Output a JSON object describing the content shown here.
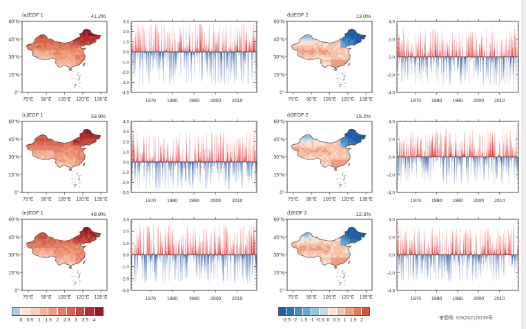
{
  "chart_data": [
    {
      "id": "a-map",
      "type": "heatmap",
      "panel": "(a)EOF 1",
      "variance": "41.2%",
      "palette": "reds",
      "xticks": [
        "75°E",
        "90°E",
        "105°E",
        "120°E",
        "135°E"
      ],
      "yticks": [
        "0°",
        "15°N",
        "30°N",
        "45°N",
        "60°N"
      ],
      "pattern": "north-high"
    },
    {
      "id": "a-pc",
      "type": "bar",
      "ylim": [
        -4,
        3
      ],
      "yticks": [
        "3.0",
        "2.0",
        "1.0",
        "0.0",
        "-1.0",
        "-2.0",
        "-3.0",
        "-4.0"
      ],
      "xticks": [
        "1970",
        "1980",
        "1990",
        "2000",
        "2010"
      ],
      "xlim": [
        1961,
        2019
      ],
      "seed": 11,
      "pos_max": 2.9,
      "neg_min": -3.3
    },
    {
      "id": "b-map",
      "type": "heatmap",
      "panel": "(b)EOF 2",
      "variance": "13.0%",
      "palette": "diverging",
      "xticks": [
        "75°E",
        "90°E",
        "105°E",
        "120°E",
        "135°E"
      ],
      "yticks": [
        "0°",
        "15°N",
        "30°N",
        "45°N",
        "60°N"
      ],
      "pattern": "northeast-negative"
    },
    {
      "id": "b-pc",
      "type": "bar",
      "ylim": [
        -4,
        4
      ],
      "yticks": [
        "4.0",
        "2.0",
        "0.0",
        "-2.0",
        "-4.0"
      ],
      "xticks": [
        "1970",
        "1980",
        "1990",
        "2000",
        "2010"
      ],
      "xlim": [
        1961,
        2019
      ],
      "seed": 23,
      "pos_max": 3.3,
      "neg_min": -3.3
    },
    {
      "id": "c-map",
      "type": "heatmap",
      "panel": "(c)EOF 1",
      "variance": "33.9%",
      "palette": "reds",
      "xticks": [
        "75°E",
        "90°E",
        "105°E",
        "120°E",
        "135°E"
      ],
      "yticks": [
        "0°",
        "15°N",
        "30°N",
        "45°N",
        "60°N"
      ],
      "pattern": "north-high"
    },
    {
      "id": "c-pc",
      "type": "bar",
      "ylim": [
        -3,
        4
      ],
      "yticks": [
        "4.0",
        "3.0",
        "2.0",
        "1.0",
        "0.0",
        "-1.0",
        "-2.0",
        "-3.0"
      ],
      "xticks": [
        "1970",
        "1980",
        "1990",
        "2000",
        "2010"
      ],
      "xlim": [
        1961,
        2019
      ],
      "seed": 37,
      "pos_max": 3.1,
      "neg_min": -2.8
    },
    {
      "id": "d-map",
      "type": "heatmap",
      "panel": "(d)EOF 2",
      "variance": "15.2%",
      "palette": "diverging",
      "xticks": [
        "75°E",
        "90°E",
        "105°E",
        "120°E",
        "135°E"
      ],
      "yticks": [
        "0°",
        "15°N",
        "30°N",
        "45°N",
        "60°N"
      ],
      "pattern": "northeast-negative"
    },
    {
      "id": "d-pc",
      "type": "bar",
      "ylim": [
        -4,
        4
      ],
      "yticks": [
        "4.0",
        "2.0",
        "0.0",
        "-2.0",
        "-4.0"
      ],
      "xticks": [
        "1970",
        "1980",
        "1990",
        "2000",
        "2010"
      ],
      "xlim": [
        1961,
        2019
      ],
      "seed": 41,
      "pos_max": 3.2,
      "neg_min": -3.2
    },
    {
      "id": "e-map",
      "type": "heatmap",
      "panel": "(e)EOF 1",
      "variance": "48.9%",
      "palette": "reds",
      "xticks": [
        "75°E",
        "90°E",
        "105°E",
        "120°E",
        "135°E"
      ],
      "yticks": [
        "0°",
        "15°N",
        "30°N",
        "45°N",
        "60°N"
      ],
      "pattern": "north-high"
    },
    {
      "id": "e-pc",
      "type": "bar",
      "ylim": [
        -3,
        3
      ],
      "yticks": [
        "3.0",
        "2.0",
        "1.0",
        "0.0",
        "-1.0",
        "-2.0",
        "-3.0"
      ],
      "xticks": [
        "1970",
        "1980",
        "1990",
        "2000",
        "2010"
      ],
      "xlim": [
        1961,
        2019
      ],
      "seed": 53,
      "pos_max": 2.6,
      "neg_min": -2.5
    },
    {
      "id": "f-map",
      "type": "heatmap",
      "panel": "(f)EOF 2",
      "variance": "12.3%",
      "palette": "diverging",
      "xticks": [
        "75°E",
        "90°E",
        "105°E",
        "120°E",
        "135°E"
      ],
      "yticks": [
        "0°",
        "15°N",
        "30°N",
        "45°N",
        "60°N"
      ],
      "pattern": "northeast-negative"
    },
    {
      "id": "f-pc",
      "type": "bar",
      "ylim": [
        -4,
        4
      ],
      "yticks": [
        "4.0",
        "2.0",
        "0.0",
        "-2.0",
        "-4.0"
      ],
      "xticks": [
        "1970",
        "1980",
        "1990",
        "2000",
        "2010"
      ],
      "xlim": [
        1961,
        2019
      ],
      "seed": 67,
      "pos_max": 3.1,
      "neg_min": -3.1
    }
  ],
  "colorbars": {
    "reds": {
      "colors": [
        "#a9cce3",
        "#fbe3d6",
        "#f8cdb9",
        "#f3b49b",
        "#ee9a7e",
        "#e47f64",
        "#d8664f",
        "#c64b40",
        "#b02e33",
        "#8f1a26"
      ],
      "labels": [
        "0",
        "0.5",
        "1",
        "1.5",
        "2",
        "2.5",
        "3",
        "3.5",
        "4"
      ]
    },
    "diverging": {
      "colors": [
        "#1f5fa3",
        "#2f74b3",
        "#4a8dc3",
        "#6aa6d1",
        "#93c1de",
        "#bedbeb",
        "#fbe0d3",
        "#f5c2aa",
        "#ee9e80",
        "#e27a5d",
        "#cf5645"
      ],
      "labels": [
        "-2.5",
        "-2",
        "-1.5",
        "-1",
        "-0.5",
        "0",
        "0.5",
        "1",
        "1.5",
        "2"
      ]
    }
  },
  "credit": "审图号: GS(2021)5139号",
  "colors": {
    "positive": "#e31a1c",
    "negative": "#1f4e9c"
  }
}
